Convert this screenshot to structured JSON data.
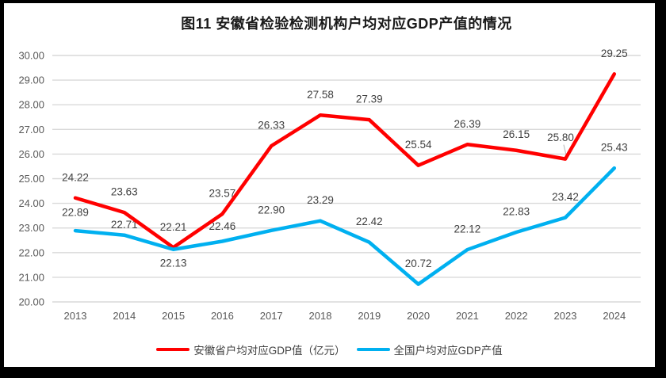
{
  "page": {
    "frame_color": "#000000",
    "canvas_color": "#FFFFFF"
  },
  "chart_data": {
    "type": "line",
    "title": "图11 安徽省检验检测机构户均对应GDP产值的情况",
    "categories": [
      "2013",
      "2014",
      "2015",
      "2016",
      "2017",
      "2018",
      "2019",
      "2020",
      "2021",
      "2022",
      "2023",
      "2024"
    ],
    "series": [
      {
        "name": "安徽省户均对应GDP值（亿元）",
        "color": "#FF0000",
        "values": [
          24.22,
          23.63,
          22.21,
          23.57,
          26.33,
          27.58,
          27.39,
          25.54,
          26.39,
          26.15,
          25.8,
          29.25
        ]
      },
      {
        "name": "全国户均对应GDP产值",
        "color": "#00B0F0",
        "values": [
          22.89,
          22.71,
          22.13,
          22.46,
          22.9,
          23.29,
          22.42,
          20.72,
          22.12,
          22.83,
          23.42,
          25.43
        ]
      }
    ],
    "ylim": [
      20,
      30
    ],
    "ytick_step": 1,
    "ytick_labels": [
      "20.00",
      "21.00",
      "22.00",
      "23.00",
      "24.00",
      "25.00",
      "26.00",
      "27.00",
      "28.00",
      "29.00",
      "30.00"
    ],
    "grid": true,
    "data_labels": true,
    "legend_position": "bottom",
    "gridline_color": "#D9D9D9",
    "axis_text_color": "#595959",
    "label_text_color": "#404040",
    "leader_line_color": "#BFBFBF",
    "label_overrides": [
      {
        "series": 0,
        "index": 9,
        "dy": -20
      },
      {
        "series": 0,
        "index": 10,
        "dx": -6,
        "dy": -27,
        "leader": true
      },
      {
        "series": 1,
        "index": 0,
        "dy": -23
      },
      {
        "series": 1,
        "index": 1,
        "dy": -13
      },
      {
        "series": 1,
        "index": 2,
        "dy": 17
      },
      {
        "series": 1,
        "index": 3,
        "dy": -19
      }
    ]
  }
}
